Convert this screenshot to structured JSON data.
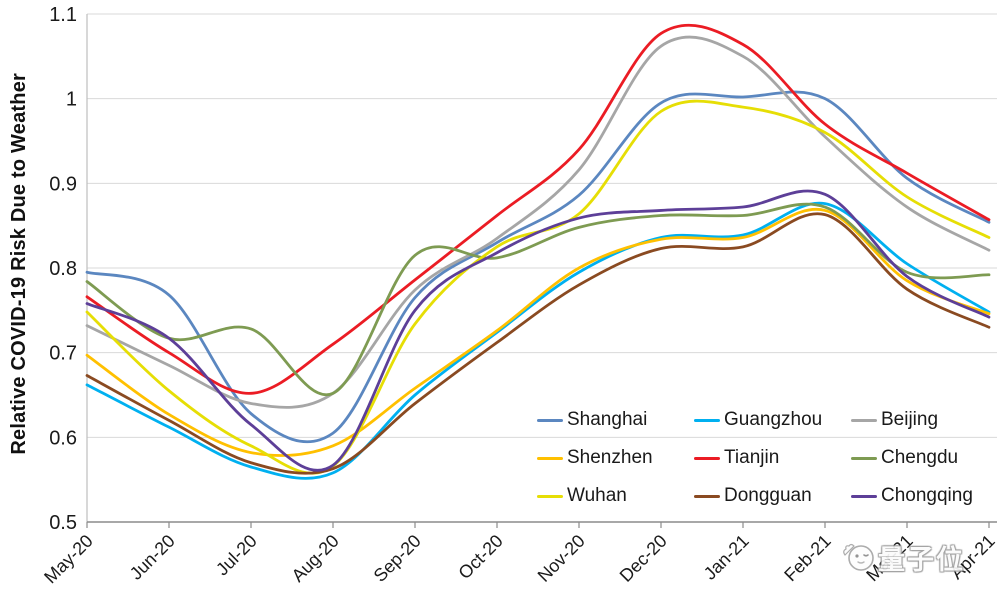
{
  "watermark": {
    "text": "量子位"
  },
  "chart_data": {
    "type": "line",
    "title": "",
    "xlabel": "",
    "ylabel": "Relative COVID-19 Risk Due to Weather",
    "ylim": [
      0.5,
      1.1
    ],
    "ytick_step": 0.1,
    "ytick_labels": [
      "0.5",
      "0.6",
      "0.7",
      "0.8",
      "0.9",
      "1",
      "1.1"
    ],
    "grid": true,
    "gridline_color": "#d9d9d9",
    "axis_color": "#8c8c8c",
    "legend_position": "inside-bottom-right",
    "categories": [
      "May-20",
      "Jun-20",
      "Jul-20",
      "Aug-20",
      "Sep-20",
      "Oct-20",
      "Nov-20",
      "Dec-20",
      "Jan-21",
      "Feb-21",
      "Mar-21",
      "Apr-21"
    ],
    "series": [
      {
        "name": "Shanghai",
        "color": "#5b87c0",
        "values": [
          0.795,
          0.768,
          0.628,
          0.605,
          0.765,
          0.83,
          0.886,
          0.995,
          1.002,
          1.0,
          0.906,
          0.854
        ]
      },
      {
        "name": "Guangzhou",
        "color": "#00b0f0",
        "values": [
          0.662,
          0.612,
          0.565,
          0.558,
          0.65,
          0.724,
          0.795,
          0.836,
          0.839,
          0.876,
          0.805,
          0.748
        ]
      },
      {
        "name": "Beijing",
        "color": "#a6a6a6",
        "values": [
          0.732,
          0.685,
          0.64,
          0.652,
          0.774,
          0.835,
          0.916,
          1.062,
          1.05,
          0.955,
          0.872,
          0.821
        ]
      },
      {
        "name": "Shenzhen",
        "color": "#ffc000",
        "values": [
          0.697,
          0.627,
          0.582,
          0.59,
          0.658,
          0.726,
          0.8,
          0.834,
          0.836,
          0.868,
          0.785,
          0.746
        ]
      },
      {
        "name": "Tianjin",
        "color": "#eb1c24",
        "values": [
          0.766,
          0.7,
          0.652,
          0.71,
          0.786,
          0.862,
          0.94,
          1.077,
          1.064,
          0.97,
          0.912,
          0.857
        ]
      },
      {
        "name": "Chengdu",
        "color": "#7e9b52",
        "values": [
          0.784,
          0.717,
          0.728,
          0.652,
          0.815,
          0.812,
          0.848,
          0.862,
          0.862,
          0.872,
          0.795,
          0.792
        ]
      },
      {
        "name": "Wuhan",
        "color": "#e6de05",
        "values": [
          0.748,
          0.655,
          0.59,
          0.566,
          0.734,
          0.825,
          0.864,
          0.985,
          0.99,
          0.96,
          0.884,
          0.836
        ]
      },
      {
        "name": "Dongguan",
        "color": "#8a4a21",
        "values": [
          0.673,
          0.62,
          0.57,
          0.563,
          0.64,
          0.712,
          0.78,
          0.823,
          0.825,
          0.863,
          0.775,
          0.73
        ]
      },
      {
        "name": "Chongqing",
        "color": "#5d3f98",
        "values": [
          0.758,
          0.717,
          0.615,
          0.567,
          0.75,
          0.818,
          0.859,
          0.868,
          0.872,
          0.887,
          0.79,
          0.742
        ]
      }
    ]
  }
}
